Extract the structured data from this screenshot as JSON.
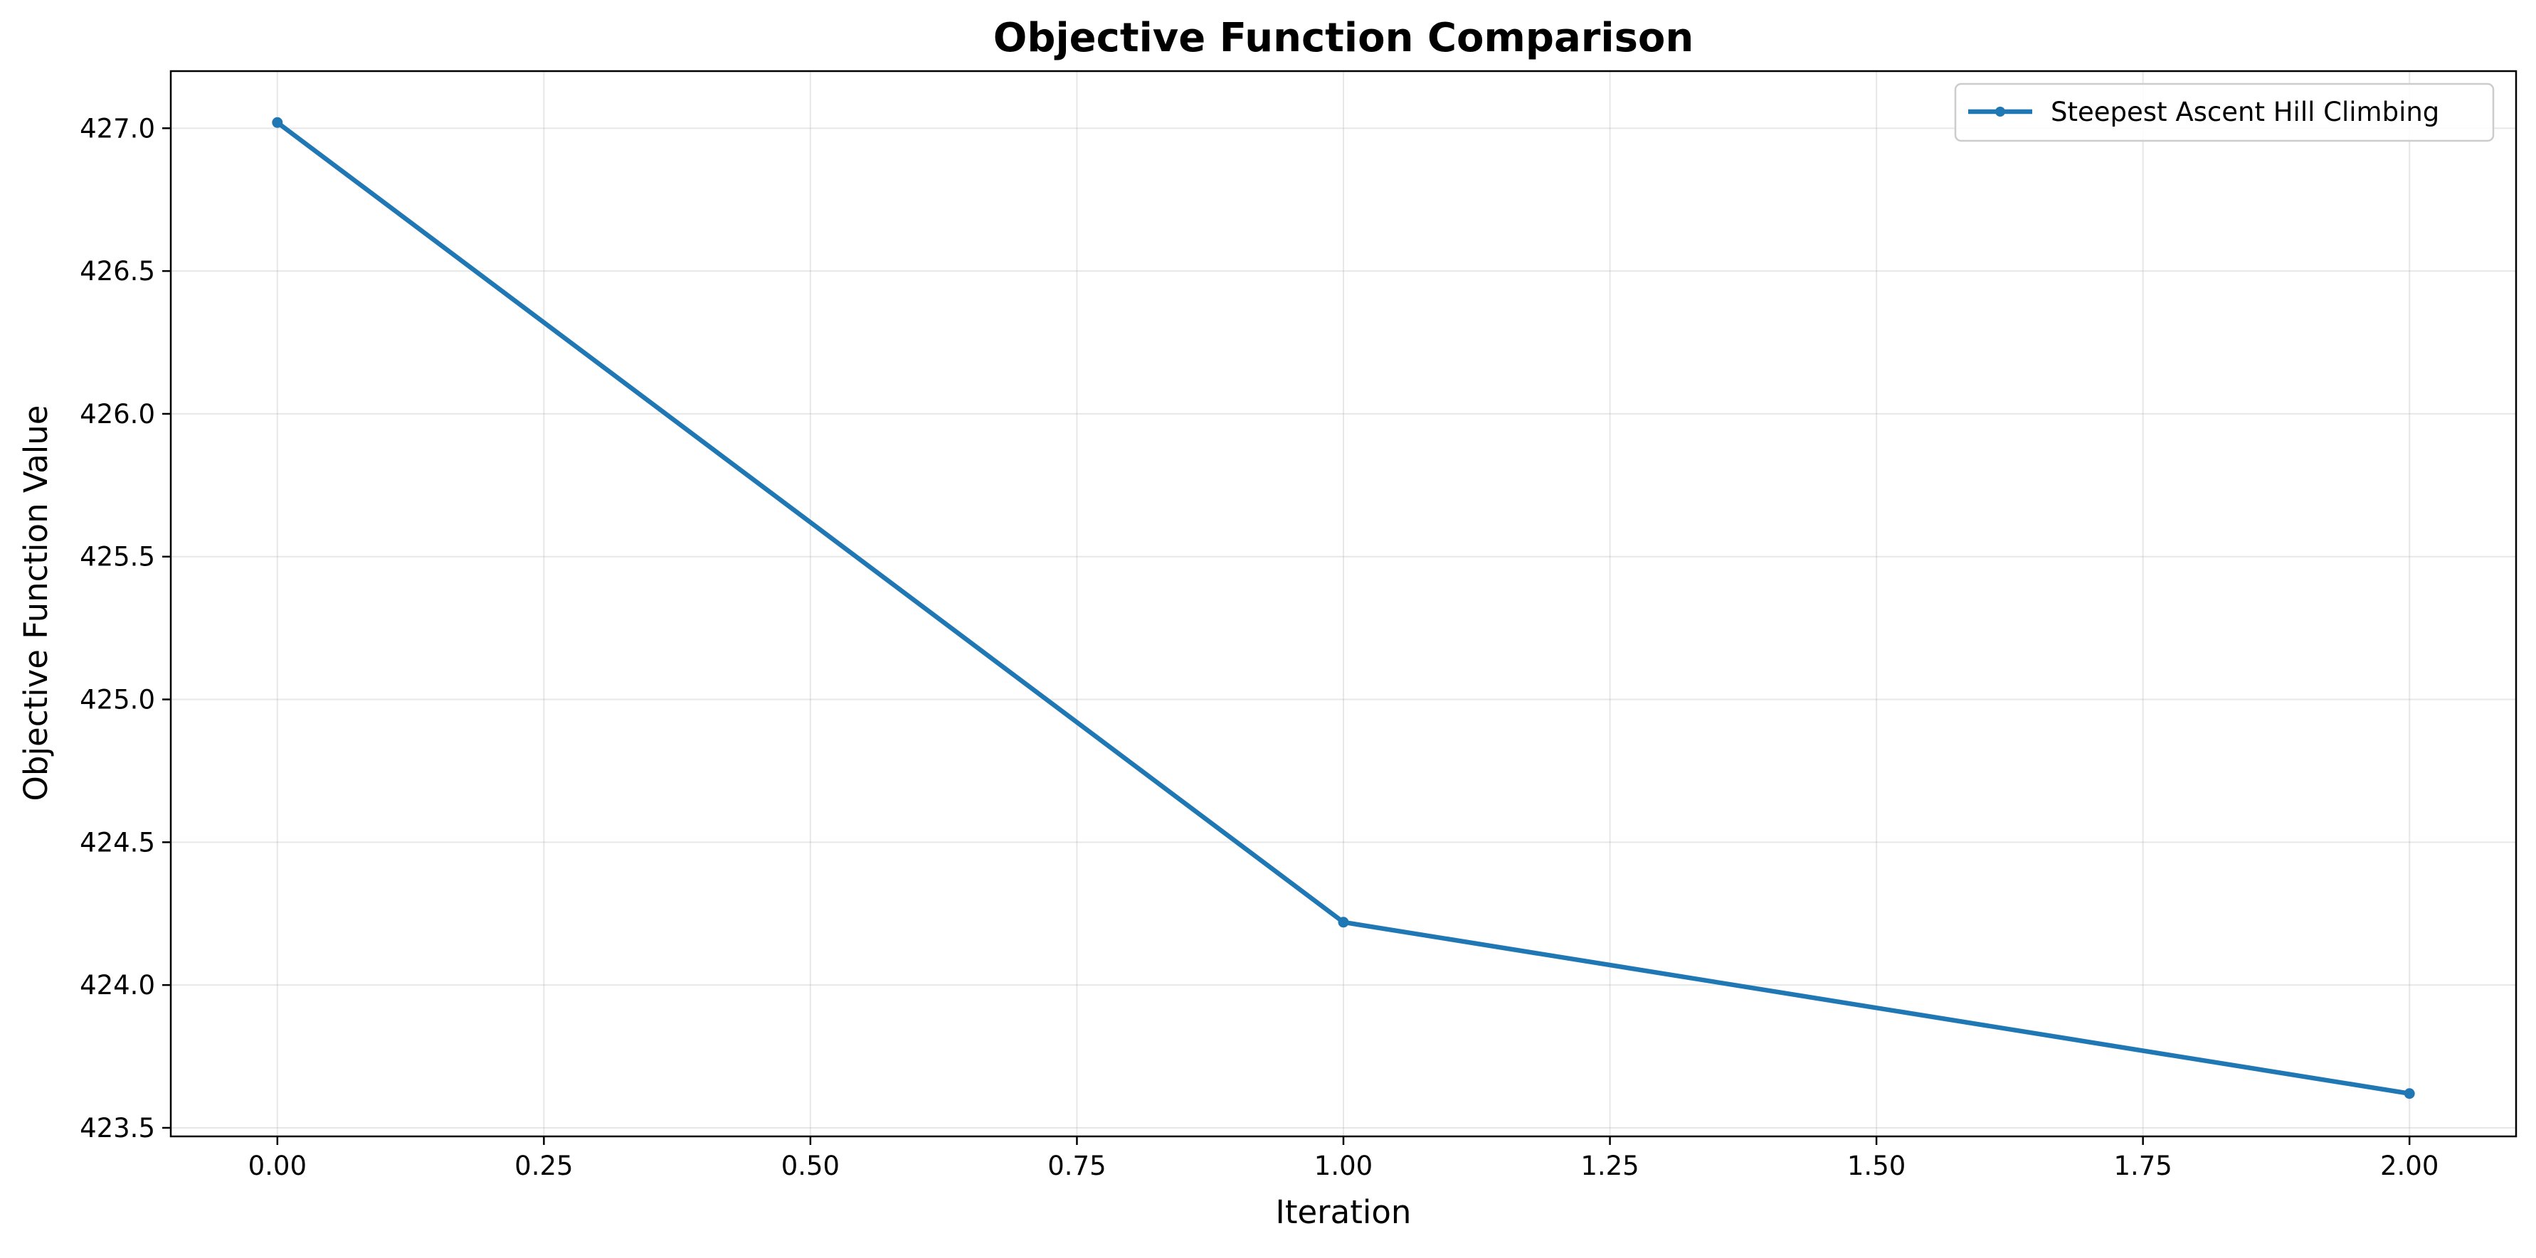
{
  "chart_data": {
    "type": "line",
    "title": "Objective Function Comparison",
    "xlabel": "Iteration",
    "ylabel": "Objective Function Value",
    "xlim": [
      -0.1,
      2.1
    ],
    "ylim": [
      423.47,
      427.2
    ],
    "x_ticks": [
      0.0,
      0.25,
      0.5,
      0.75,
      1.0,
      1.25,
      1.5,
      1.75,
      2.0
    ],
    "x_tick_labels": [
      "0.00",
      "0.25",
      "0.50",
      "0.75",
      "1.00",
      "1.25",
      "1.50",
      "1.75",
      "2.00"
    ],
    "y_ticks": [
      423.5,
      424.0,
      424.5,
      425.0,
      425.5,
      426.0,
      426.5,
      427.0
    ],
    "y_tick_labels": [
      "423.5",
      "424.0",
      "424.5",
      "425.0",
      "425.5",
      "426.0",
      "426.5",
      "427.0"
    ],
    "grid": true,
    "legend_position": "top-right",
    "series": [
      {
        "name": "Steepest Ascent Hill Climbing",
        "color": "#1f77b4",
        "marker": "circle",
        "x": [
          0,
          1,
          2
        ],
        "y": [
          427.02,
          424.22,
          423.62
        ]
      }
    ]
  }
}
